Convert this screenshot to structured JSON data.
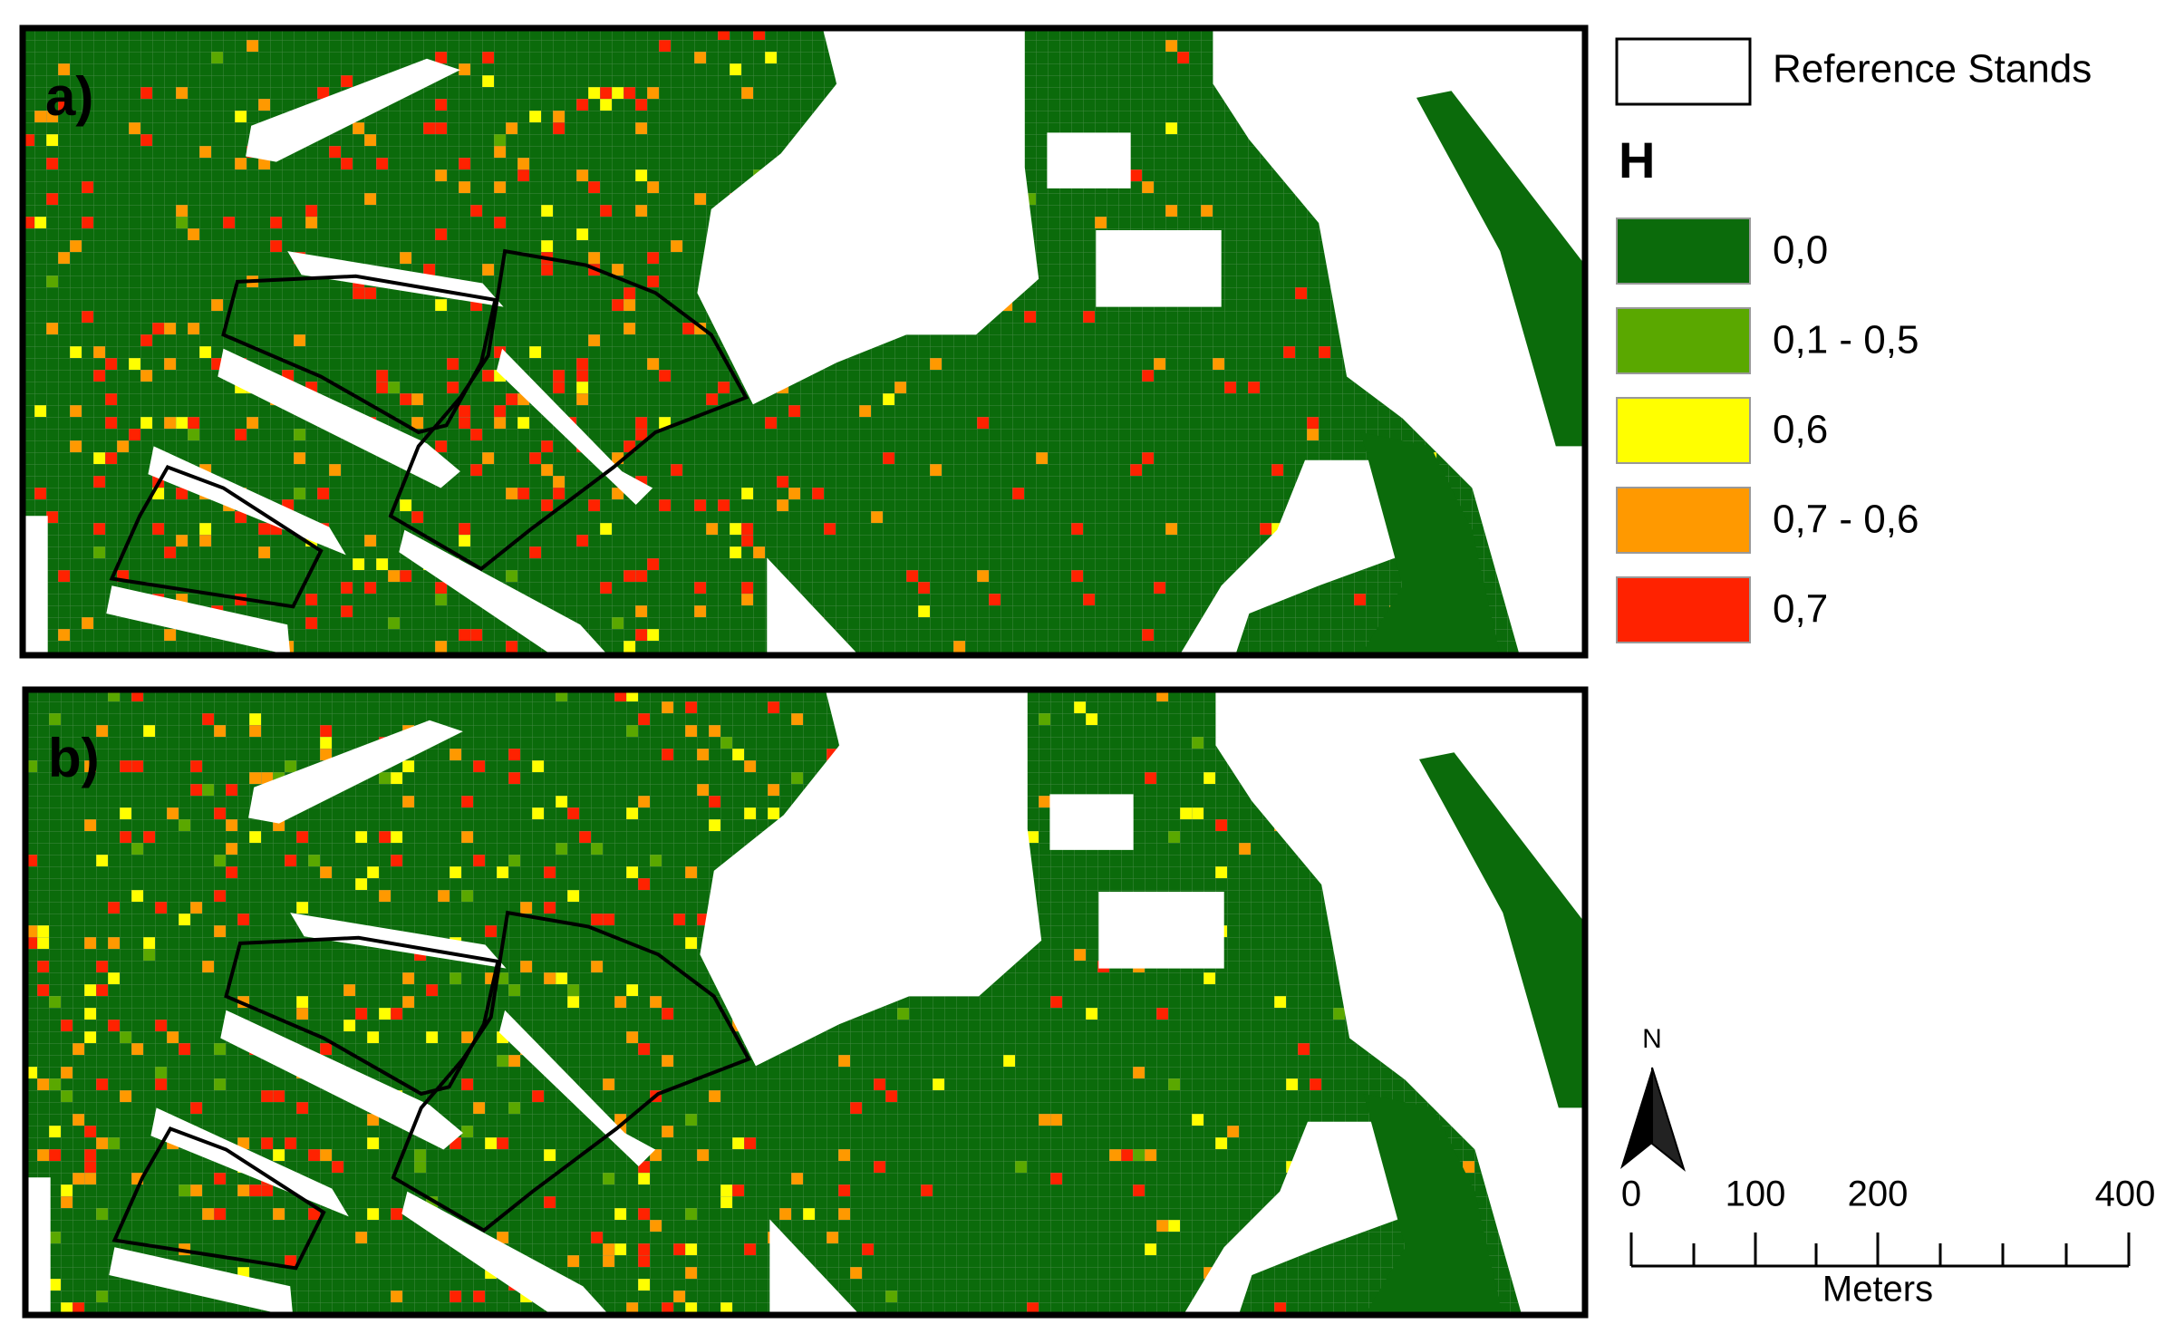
{
  "panels": [
    {
      "label": "a)"
    },
    {
      "label": "b)"
    }
  ],
  "legend": {
    "reference_label": "Reference Stands",
    "title": "H",
    "classes": [
      {
        "label": "0,0",
        "color": "#0b6b0b"
      },
      {
        "label": "0,1 - 0,5",
        "color": "#5aa800"
      },
      {
        "label": "0,6",
        "color": "#ffff00"
      },
      {
        "label": "0,7 - 0,6",
        "color": "#ff9900"
      },
      {
        "label": "0,7",
        "color": "#ff2200"
      }
    ]
  },
  "north_arrow": {
    "label": "N"
  },
  "scale_bar": {
    "tick_labels": [
      "0",
      "100",
      "200",
      "400"
    ],
    "unit": "Meters"
  }
}
